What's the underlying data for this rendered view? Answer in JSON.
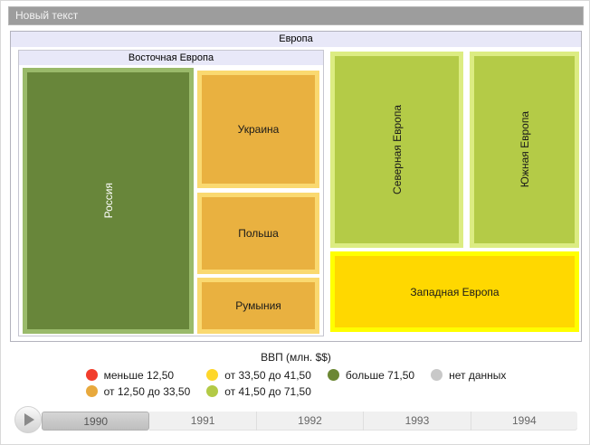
{
  "window": {
    "title": "Новый текст"
  },
  "treemap": {
    "root_label": "Европа",
    "east_group_label": "Восточная Европа",
    "nodes": {
      "russia": "Россия",
      "ukraine": "Украина",
      "poland": "Польша",
      "romania": "Румыния",
      "north": "Северная Европа",
      "south": "Южная Европа",
      "west": "Западная Европа"
    },
    "colors": {
      "dark_green_fill": "#68863a",
      "dark_green_border": "#9aba6a",
      "orange_fill": "#e9b140",
      "orange_border": "#fad970",
      "yellow_green_fill": "#b4cb47",
      "yellow_green_border": "#dcec82",
      "yellow_fill": "#ffd800",
      "yellow_border": "#ffff00"
    }
  },
  "legend": {
    "title": "ВВП (млн. $$)",
    "items": [
      {
        "label": "меньше 12,50",
        "color": "#f23d2c"
      },
      {
        "label": "от 12,50 до 33,50",
        "color": "#e8a93d"
      },
      {
        "label": "от 33,50 до 41,50",
        "color": "#fed72a"
      },
      {
        "label": "от 41,50 до 71,50",
        "color": "#b3ca46"
      },
      {
        "label": "больше 71,50",
        "color": "#6b8733"
      },
      {
        "label": "нет данных",
        "color": "#c8c8c8"
      }
    ]
  },
  "timeline": {
    "play_icon": "play",
    "years": [
      "1990",
      "1991",
      "1992",
      "1993",
      "1994"
    ],
    "selected_year": "1990"
  }
}
